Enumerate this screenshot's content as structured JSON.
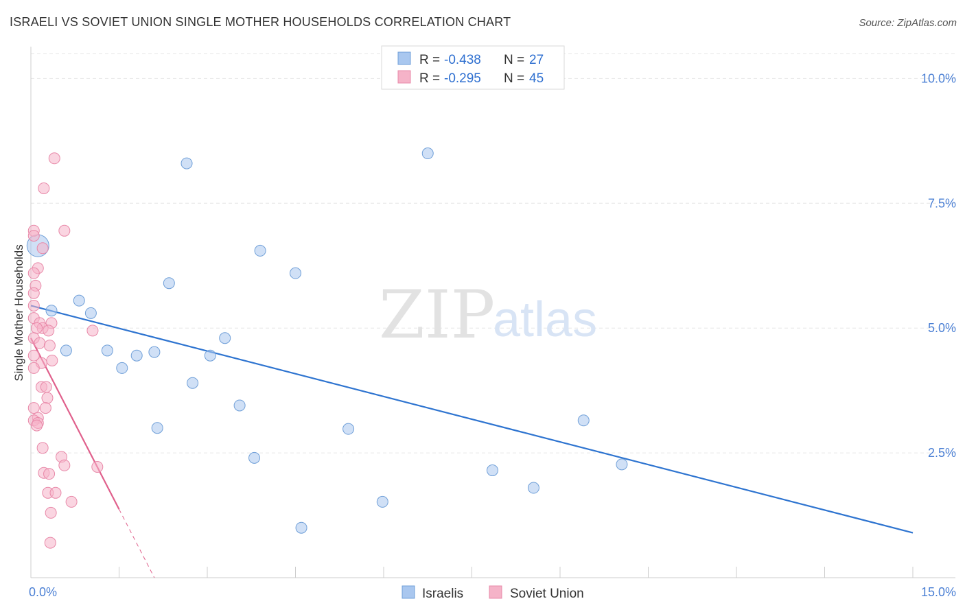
{
  "chart_data": {
    "type": "scatter",
    "title": "ISRAELI VS SOVIET UNION SINGLE MOTHER HOUSEHOLDS CORRELATION CHART",
    "source": "Source: ZipAtlas.com",
    "xlabel": "",
    "ylabel": "Single Mother Households",
    "xlim": [
      0,
      15
    ],
    "ylim": [
      0,
      10.5
    ],
    "x_tick_labels": [
      "0.0%",
      "15.0%"
    ],
    "y_ticks": [
      2.5,
      5.0,
      7.5,
      10.0
    ],
    "y_tick_labels": [
      "2.5%",
      "5.0%",
      "7.5%",
      "10.0%"
    ],
    "grid": true,
    "watermark": {
      "zip": "ZIP",
      "atlas": "atlas"
    },
    "legend_top": {
      "rows": [
        {
          "r_label": "R = ",
          "r_value": "-0.438",
          "n_label": "N = ",
          "n_value": "27",
          "color": "#a9c7ef"
        },
        {
          "r_label": "R = ",
          "r_value": "-0.295",
          "n_label": "N = ",
          "n_value": "45",
          "color": "#f5b3c8"
        }
      ]
    },
    "legend_bottom": [
      "Israelis",
      "Soviet Union"
    ],
    "series": [
      {
        "name": "Israelis",
        "color": "#a9c7ef",
        "stroke": "#6f9fd8",
        "trend_color": "#2e74d0",
        "trend": {
          "x0": 0.0,
          "y0": 5.45,
          "x1": 15.0,
          "y1": 0.9,
          "dashed_from": null
        },
        "points": [
          [
            0.12,
            6.65
          ],
          [
            0.35,
            5.35
          ],
          [
            0.82,
            5.55
          ],
          [
            1.02,
            5.3
          ],
          [
            0.6,
            4.55
          ],
          [
            1.3,
            4.55
          ],
          [
            1.55,
            4.2
          ],
          [
            1.8,
            4.45
          ],
          [
            2.1,
            4.52
          ],
          [
            2.35,
            5.9
          ],
          [
            2.65,
            8.3
          ],
          [
            2.75,
            3.9
          ],
          [
            3.05,
            4.45
          ],
          [
            3.3,
            4.8
          ],
          [
            3.55,
            3.45
          ],
          [
            3.9,
            6.55
          ],
          [
            3.8,
            2.4
          ],
          [
            4.5,
            6.1
          ],
          [
            4.6,
            1.0
          ],
          [
            2.15,
            3.0
          ],
          [
            5.4,
            2.98
          ],
          [
            5.98,
            1.52
          ],
          [
            6.75,
            8.5
          ],
          [
            7.85,
            2.15
          ],
          [
            8.55,
            1.8
          ],
          [
            9.4,
            3.15
          ],
          [
            10.05,
            2.27
          ]
        ]
      },
      {
        "name": "Soviet Union",
        "color": "#f5b3c8",
        "stroke": "#e888a8",
        "trend_color": "#e0608c",
        "trend": {
          "x0": 0.0,
          "y0": 4.8,
          "x1": 2.1,
          "y1": 0.0,
          "dashed_from": 1.5
        },
        "points": [
          [
            0.4,
            8.4
          ],
          [
            0.22,
            7.8
          ],
          [
            0.57,
            6.95
          ],
          [
            0.05,
            6.95
          ],
          [
            0.05,
            6.85
          ],
          [
            0.2,
            6.6
          ],
          [
            0.12,
            6.2
          ],
          [
            0.05,
            6.1
          ],
          [
            0.08,
            5.85
          ],
          [
            0.05,
            5.7
          ],
          [
            0.05,
            5.45
          ],
          [
            0.05,
            5.2
          ],
          [
            0.15,
            5.1
          ],
          [
            0.35,
            5.1
          ],
          [
            0.2,
            5.0
          ],
          [
            0.1,
            5.0
          ],
          [
            0.3,
            4.95
          ],
          [
            1.05,
            4.95
          ],
          [
            0.05,
            4.8
          ],
          [
            0.15,
            4.7
          ],
          [
            0.32,
            4.65
          ],
          [
            0.05,
            4.45
          ],
          [
            0.36,
            4.35
          ],
          [
            0.18,
            4.3
          ],
          [
            0.05,
            4.2
          ],
          [
            0.18,
            3.82
          ],
          [
            0.26,
            3.82
          ],
          [
            0.28,
            3.6
          ],
          [
            0.05,
            3.4
          ],
          [
            0.25,
            3.4
          ],
          [
            0.12,
            3.2
          ],
          [
            0.05,
            3.15
          ],
          [
            0.12,
            3.1
          ],
          [
            0.1,
            3.05
          ],
          [
            0.2,
            2.6
          ],
          [
            0.52,
            2.42
          ],
          [
            0.57,
            2.25
          ],
          [
            1.13,
            2.22
          ],
          [
            0.22,
            2.1
          ],
          [
            0.31,
            2.08
          ],
          [
            0.29,
            1.7
          ],
          [
            0.42,
            1.7
          ],
          [
            0.69,
            1.52
          ],
          [
            0.34,
            1.3
          ],
          [
            0.33,
            0.7
          ]
        ]
      }
    ]
  }
}
